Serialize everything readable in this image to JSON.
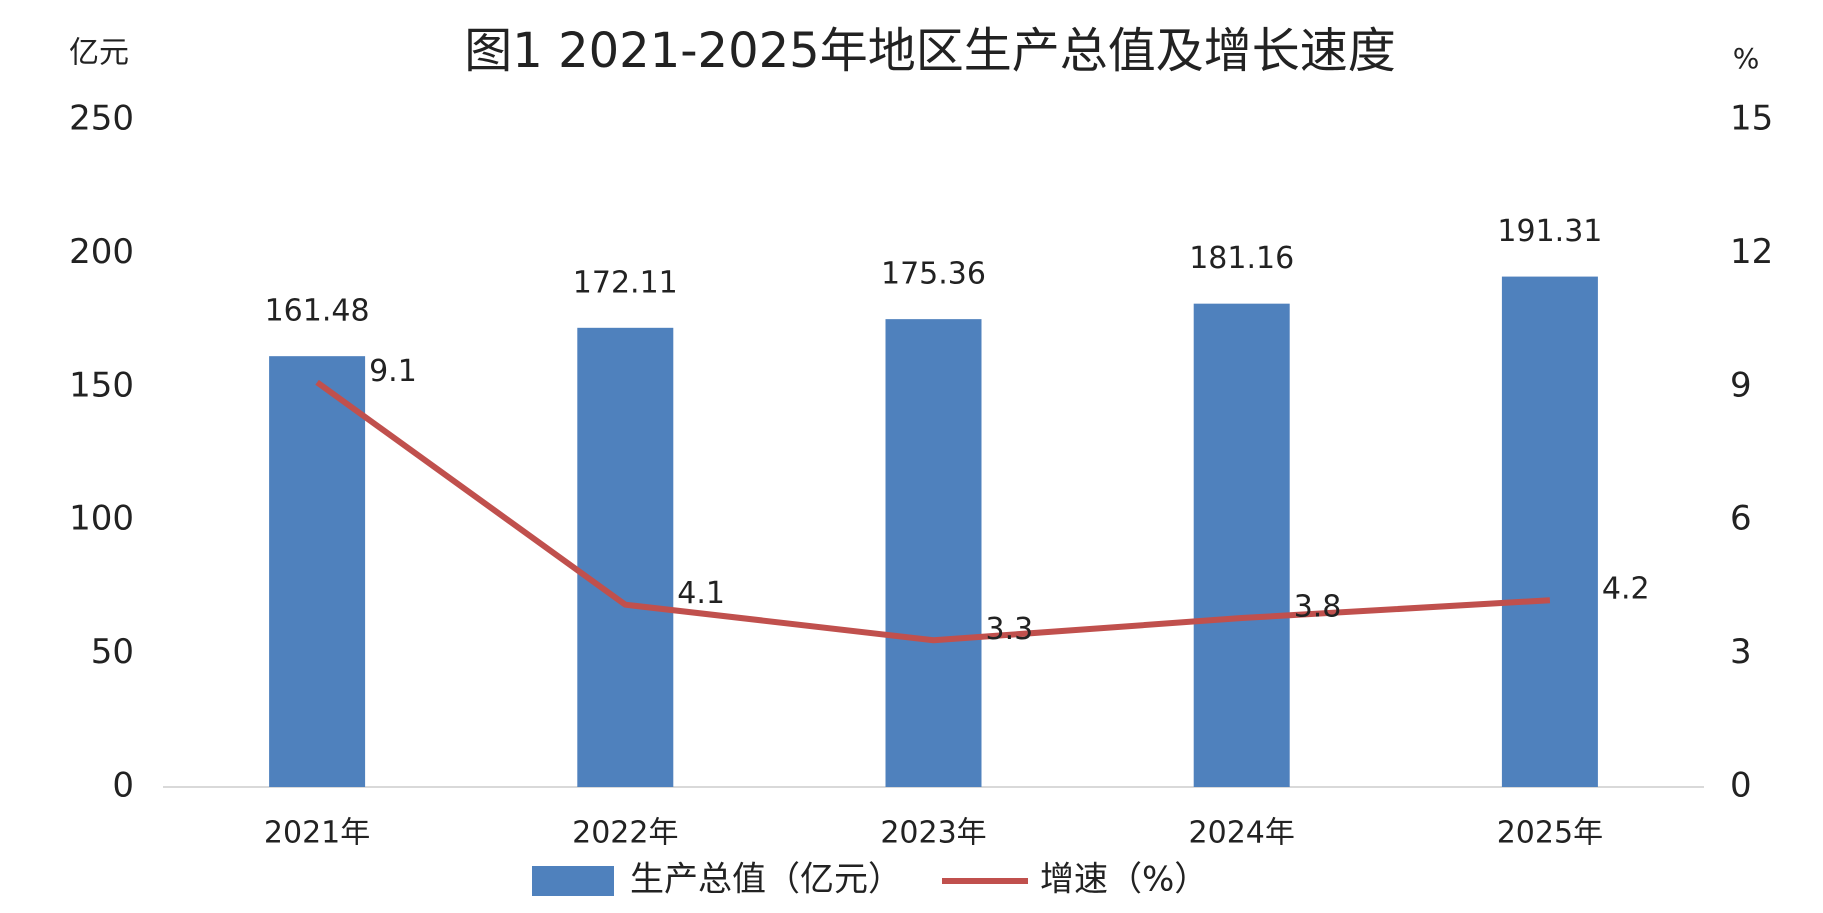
{
  "chart_data": {
    "type": "bar",
    "title": "图1 2021-2025年地区生产总值及增长速度",
    "y_label": "亿元",
    "y2_label": "%",
    "categories": [
      "2021年",
      "2022年",
      "2023年",
      "2024年",
      "2025年"
    ],
    "series": [
      {
        "name": "生产总值（亿元）",
        "type": "bar",
        "color": "#4f81bd",
        "values": [
          161.48,
          172.11,
          175.36,
          181.16,
          191.31
        ]
      },
      {
        "name": "增速（%）",
        "type": "line",
        "axis": "y2",
        "color": "#c0504d",
        "values": [
          9.1,
          4.1,
          3.3,
          3.8,
          4.2
        ]
      }
    ],
    "ylim": [
      0,
      250
    ],
    "yticks": [
      0,
      50,
      100,
      150,
      200,
      250
    ],
    "y2lim": [
      0,
      15
    ],
    "y2ticks": [
      0,
      3,
      6,
      9,
      12,
      15
    ],
    "grid": false,
    "legend": "bottom"
  }
}
